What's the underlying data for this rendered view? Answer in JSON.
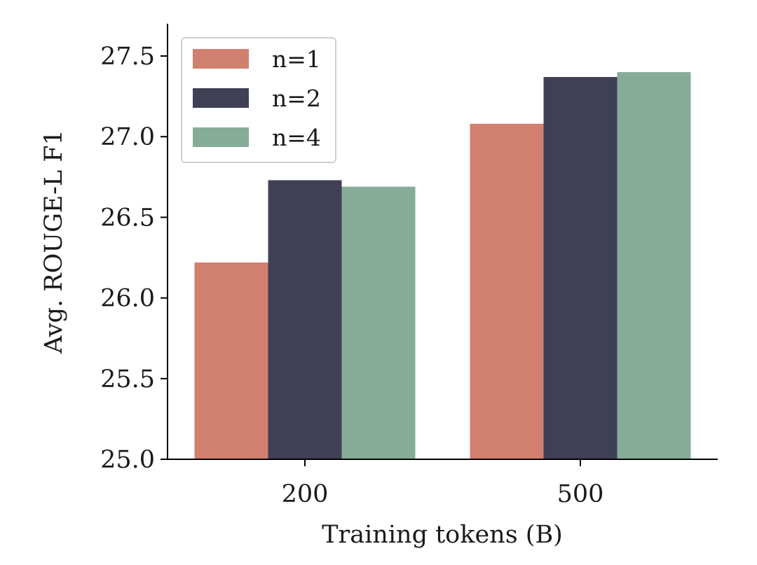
{
  "chart_data": {
    "type": "bar",
    "title": "",
    "xlabel": "Training tokens (B)",
    "ylabel": "Avg. ROUGE-L F1",
    "categories": [
      "200",
      "500"
    ],
    "series": [
      {
        "name": "n=1",
        "color": "#d1806f",
        "values": [
          26.22,
          27.08
        ]
      },
      {
        "name": "n=2",
        "color": "#3f4055",
        "values": [
          26.73,
          27.37
        ]
      },
      {
        "name": "n=4",
        "color": "#86ac99",
        "values": [
          26.69,
          27.4
        ]
      }
    ],
    "ylim": [
      25.0,
      27.7
    ],
    "yticks": [
      "25.0",
      "25.5",
      "26.0",
      "26.5",
      "27.0",
      "27.5"
    ],
    "grid": false,
    "legend_position": "top-left"
  }
}
